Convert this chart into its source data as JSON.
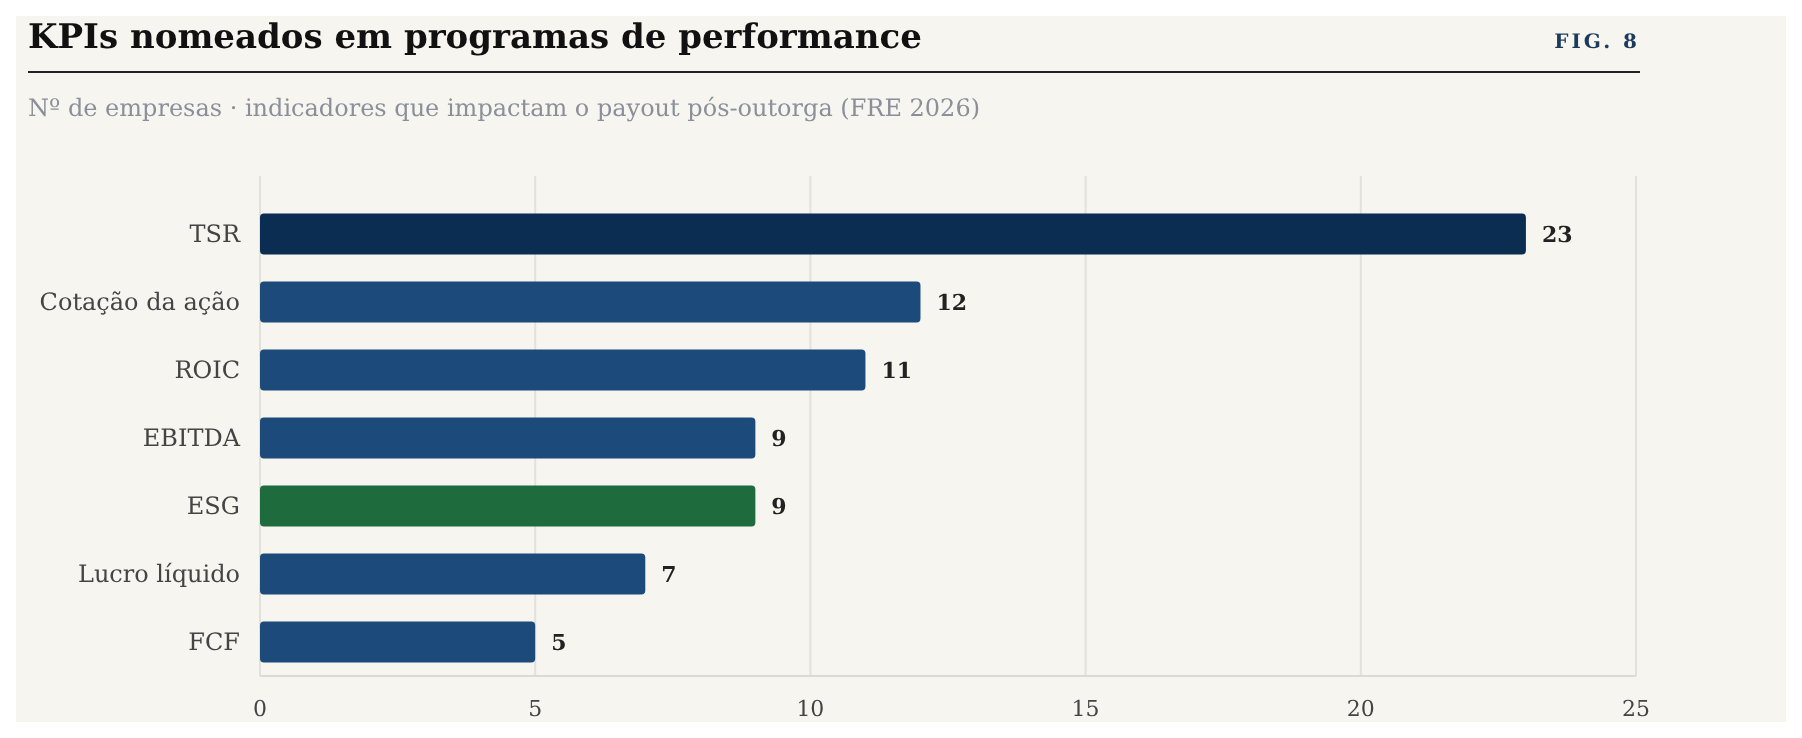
{
  "chart_data": {
    "type": "bar",
    "orientation": "horizontal",
    "title": "KPIs nomeados em programas de performance",
    "subtitle": "Nº de empresas · indicadores que impactam o payout pós-outorga (FRE 2026)",
    "annotations": [
      "FIG. 8"
    ],
    "categories": [
      "TSR",
      "Cotação da ação",
      "ROIC",
      "EBITDA",
      "ESG",
      "Lucro líquido",
      "FCF"
    ],
    "values": [
      23,
      12,
      11,
      9,
      9,
      7,
      5
    ],
    "colors": [
      "#0b2d52",
      "#1c4a7a",
      "#1c4a7a",
      "#1c4a7a",
      "#1e6b3e",
      "#1c4a7a",
      "#1c4a7a"
    ],
    "xlim": [
      0,
      25
    ],
    "xticks": [
      0,
      5,
      10,
      15,
      20,
      25
    ],
    "grid": "x",
    "data_labels": true
  }
}
